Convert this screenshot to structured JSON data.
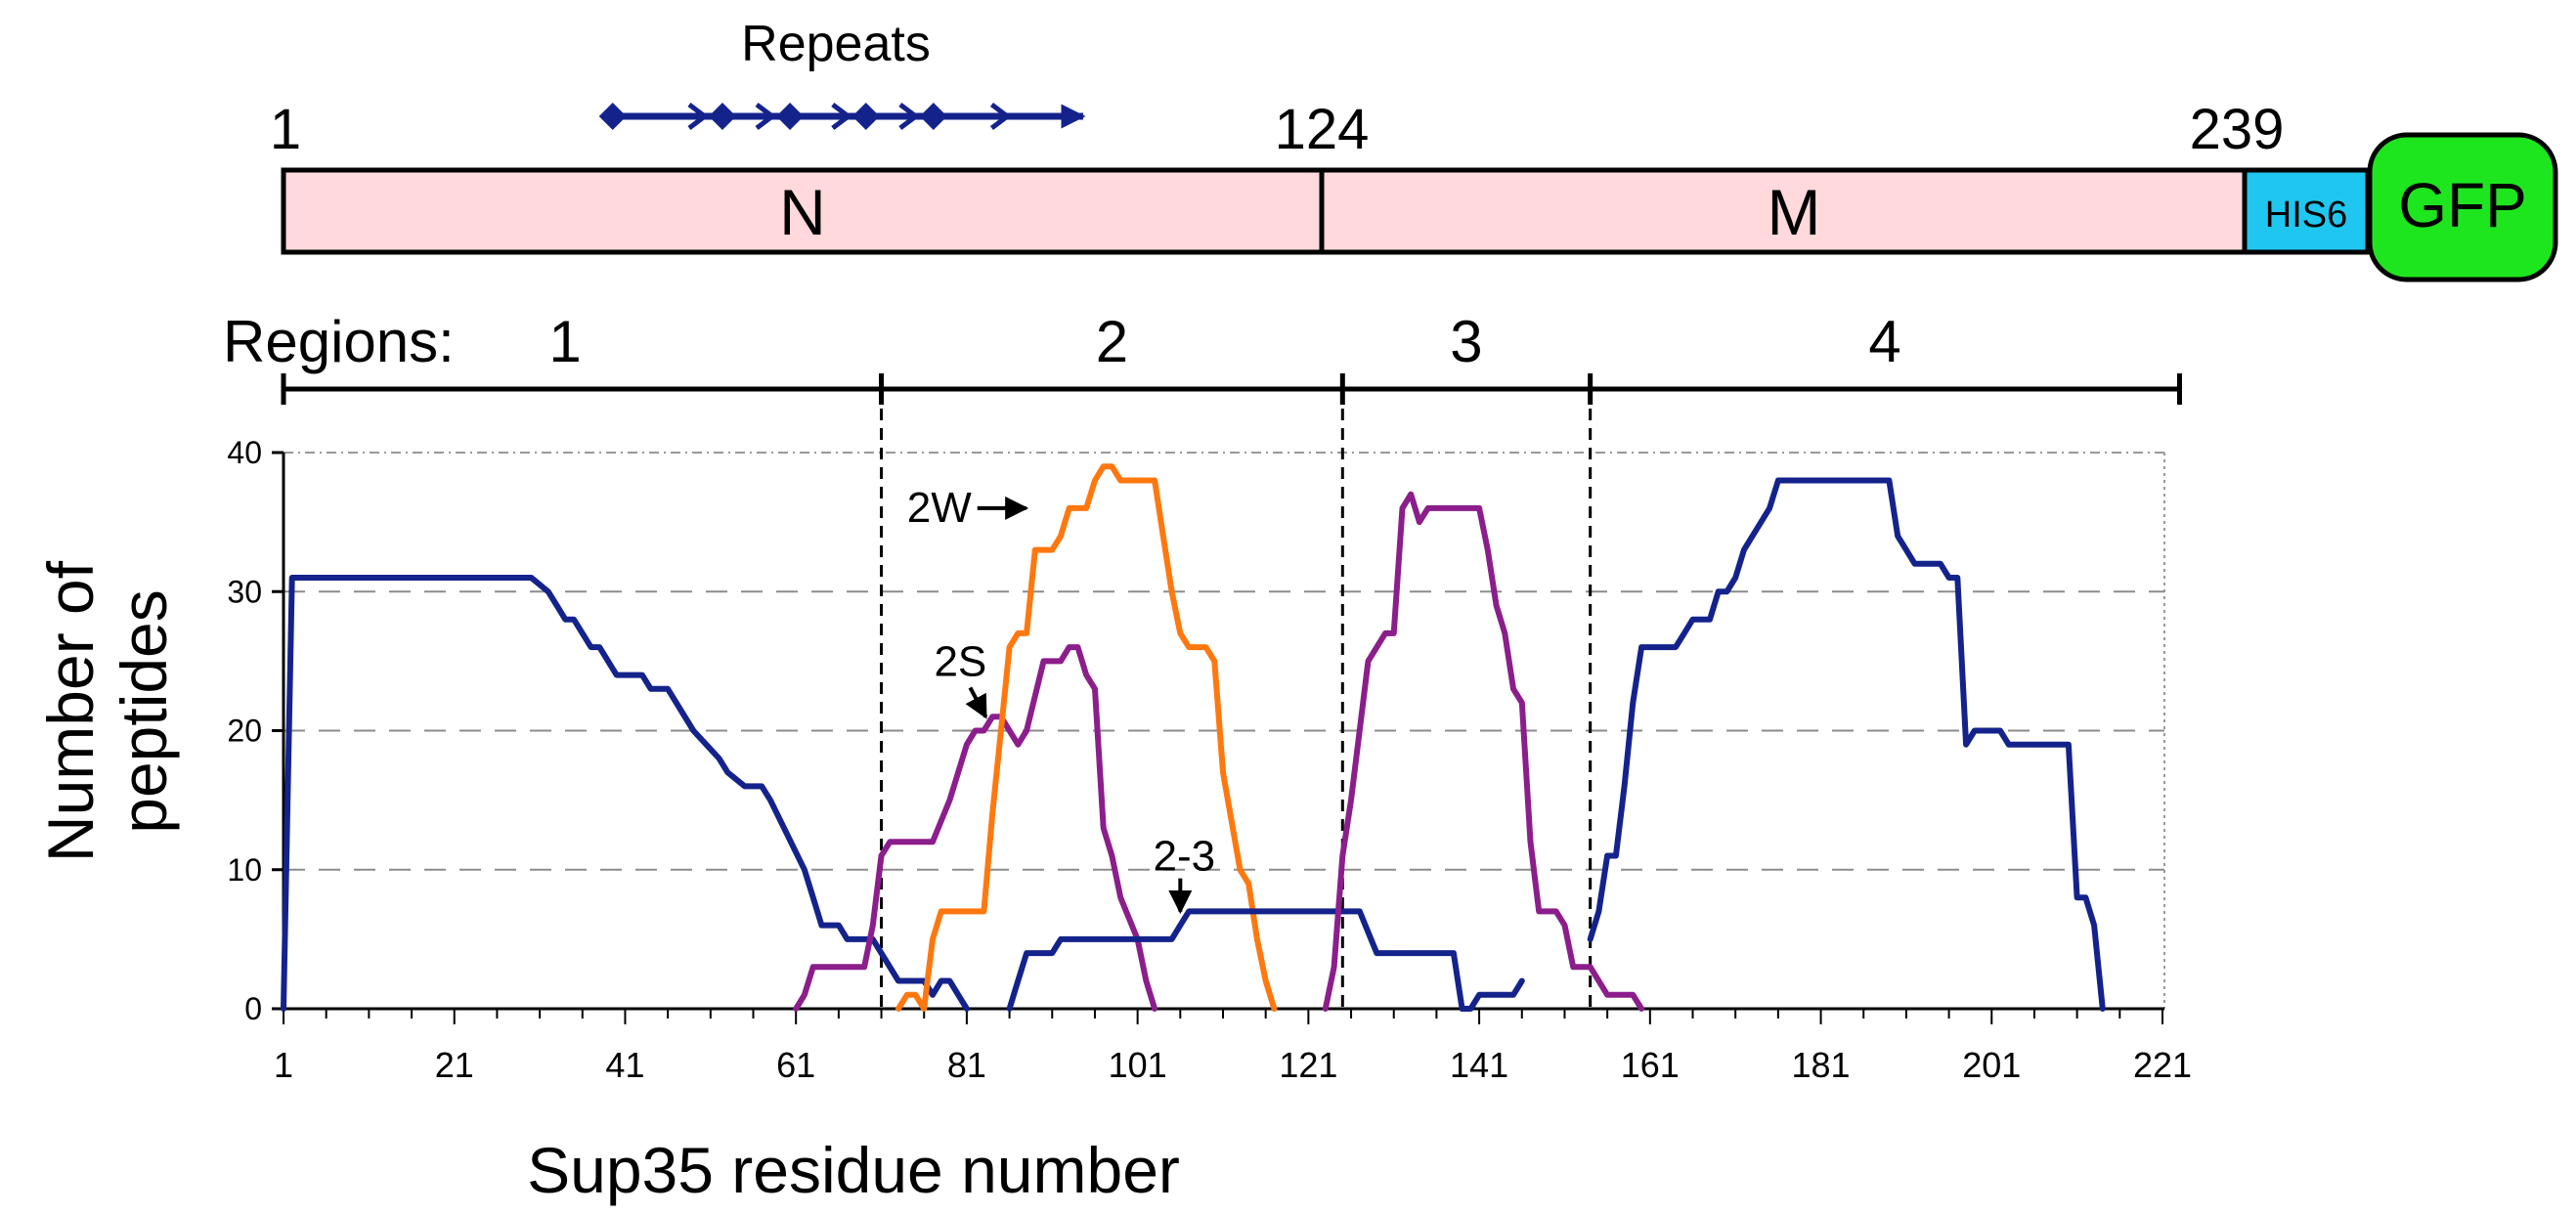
{
  "domain_bar": {
    "repeats_label": "Repeats",
    "label_start": "1",
    "label_boundary": "124",
    "label_end": "239",
    "segments": [
      {
        "key": "N",
        "label": "N",
        "start": 1,
        "end": 124,
        "color": "#ffd9dc"
      },
      {
        "key": "M",
        "label": "M",
        "start": 124,
        "end": 239,
        "color": "#ffd9dc"
      }
    ],
    "his_tag": {
      "label": "HIS6",
      "color": "#1fc7f0"
    },
    "gfp": {
      "label": "GFP",
      "color": "#1ee61e"
    },
    "repeat_positions": [
      40,
      53,
      61,
      70,
      78,
      90
    ],
    "repeat_arrow_color": "#14238c"
  },
  "regions": {
    "title": "Regions:",
    "items": [
      {
        "label": "1",
        "start": 1,
        "end": 71
      },
      {
        "label": "2",
        "start": 71,
        "end": 125
      },
      {
        "label": "3",
        "start": 125,
        "end": 154
      },
      {
        "label": "4",
        "start": 154,
        "end": 223
      }
    ]
  },
  "chart_data": {
    "type": "line",
    "xlabel": "Sup35 residue number",
    "ylabel": "Number of peptides",
    "ylabel_lines": [
      "Number of",
      "peptides"
    ],
    "xlim": [
      1,
      225
    ],
    "ylim": [
      0,
      40
    ],
    "xticks": [
      1,
      21,
      41,
      61,
      81,
      101,
      121,
      141,
      161,
      181,
      201,
      221
    ],
    "yticks": [
      0,
      10,
      20,
      30,
      40
    ],
    "grid": "horizontal dashed",
    "region_dividers": [
      71,
      125,
      154,
      223
    ],
    "series": [
      {
        "name": "Region 1",
        "color": "#14238c",
        "points": [
          [
            1,
            0
          ],
          [
            2,
            31
          ],
          [
            4,
            31
          ],
          [
            30,
            31
          ],
          [
            32,
            30
          ],
          [
            33,
            29
          ],
          [
            34,
            28
          ],
          [
            35,
            28
          ],
          [
            37,
            26
          ],
          [
            38,
            26
          ],
          [
            40,
            24
          ],
          [
            43,
            24
          ],
          [
            44,
            23
          ],
          [
            46,
            23
          ],
          [
            49,
            20
          ],
          [
            52,
            18
          ],
          [
            53,
            17
          ],
          [
            55,
            16
          ],
          [
            57,
            16
          ],
          [
            58,
            15
          ],
          [
            62,
            10
          ],
          [
            63,
            8
          ],
          [
            64,
            6
          ],
          [
            66,
            6
          ],
          [
            67,
            5
          ],
          [
            70,
            5
          ],
          [
            73,
            2
          ],
          [
            76,
            2
          ],
          [
            77,
            1
          ],
          [
            78,
            2
          ],
          [
            79,
            2
          ],
          [
            80,
            1
          ],
          [
            81,
            0
          ]
        ]
      },
      {
        "name": "2S",
        "color": "#8c1e8c",
        "points": [
          [
            61,
            0
          ],
          [
            62,
            1
          ],
          [
            63,
            3
          ],
          [
            69,
            3
          ],
          [
            70,
            6
          ],
          [
            71,
            11
          ],
          [
            72,
            12
          ],
          [
            77,
            12
          ],
          [
            79,
            15
          ],
          [
            81,
            19
          ],
          [
            82,
            20
          ],
          [
            83,
            20
          ],
          [
            84,
            21
          ],
          [
            85,
            21
          ],
          [
            86,
            20
          ],
          [
            87,
            19
          ],
          [
            88,
            20
          ],
          [
            90,
            25
          ],
          [
            92,
            25
          ],
          [
            93,
            26
          ],
          [
            94,
            26
          ],
          [
            95,
            24
          ],
          [
            96,
            23
          ],
          [
            97,
            13
          ],
          [
            98,
            11
          ],
          [
            99,
            8
          ],
          [
            101,
            5
          ],
          [
            102,
            2
          ],
          [
            103,
            0
          ]
        ]
      },
      {
        "name": "2W",
        "color": "#ff780f",
        "points": [
          [
            73,
            0
          ],
          [
            74,
            1
          ],
          [
            75,
            1
          ],
          [
            76,
            0
          ],
          [
            77,
            5
          ],
          [
            78,
            7
          ],
          [
            83,
            7
          ],
          [
            84,
            14
          ],
          [
            85,
            20
          ],
          [
            86,
            26
          ],
          [
            87,
            27
          ],
          [
            88,
            27
          ],
          [
            89,
            33
          ],
          [
            91,
            33
          ],
          [
            92,
            34
          ],
          [
            93,
            36
          ],
          [
            95,
            36
          ],
          [
            96,
            38
          ],
          [
            97,
            39
          ],
          [
            98,
            39
          ],
          [
            99,
            38
          ],
          [
            103,
            38
          ],
          [
            104,
            34
          ],
          [
            105,
            30
          ],
          [
            106,
            27
          ],
          [
            107,
            26
          ],
          [
            109,
            26
          ],
          [
            110,
            25
          ],
          [
            111,
            17
          ],
          [
            113,
            10
          ],
          [
            114,
            9
          ],
          [
            115,
            5
          ],
          [
            116,
            2
          ],
          [
            117,
            0
          ]
        ]
      },
      {
        "name": "2-3",
        "color": "#14238c",
        "points": [
          [
            86,
            0
          ],
          [
            87,
            2
          ],
          [
            88,
            4
          ],
          [
            91,
            4
          ],
          [
            92,
            5
          ],
          [
            105,
            5
          ],
          [
            106,
            6
          ],
          [
            107,
            7
          ],
          [
            120,
            7
          ],
          [
            123,
            7
          ],
          [
            127,
            7
          ],
          [
            129,
            4
          ],
          [
            134,
            4
          ],
          [
            138,
            4
          ],
          [
            139,
            0
          ],
          [
            140,
            0
          ],
          [
            141,
            1
          ],
          [
            145,
            1
          ],
          [
            146,
            2
          ]
        ]
      },
      {
        "name": "Region 3",
        "color": "#8c1e8c",
        "points": [
          [
            123,
            0
          ],
          [
            124,
            3
          ],
          [
            125,
            11
          ],
          [
            126,
            15
          ],
          [
            128,
            25
          ],
          [
            130,
            27
          ],
          [
            131,
            27
          ],
          [
            132,
            36
          ],
          [
            133,
            37
          ],
          [
            134,
            35
          ],
          [
            135,
            36
          ],
          [
            141,
            36
          ],
          [
            142,
            33
          ],
          [
            143,
            29
          ],
          [
            144,
            27
          ],
          [
            145,
            23
          ],
          [
            146,
            22
          ],
          [
            147,
            12
          ],
          [
            148,
            7
          ],
          [
            150,
            7
          ],
          [
            151,
            6
          ],
          [
            152,
            3
          ],
          [
            154,
            3
          ],
          [
            156,
            1
          ],
          [
            159,
            1
          ],
          [
            160,
            0
          ]
        ]
      },
      {
        "name": "Region 4",
        "color": "#14238c",
        "points": [
          [
            154,
            5
          ],
          [
            155,
            7
          ],
          [
            156,
            11
          ],
          [
            157,
            11
          ],
          [
            158,
            16
          ],
          [
            159,
            22
          ],
          [
            160,
            26
          ],
          [
            164,
            26
          ],
          [
            165,
            27
          ],
          [
            166,
            28
          ],
          [
            168,
            28
          ],
          [
            169,
            30
          ],
          [
            170,
            30
          ],
          [
            171,
            31
          ],
          [
            172,
            33
          ],
          [
            175,
            36
          ],
          [
            176,
            38
          ],
          [
            189,
            38
          ],
          [
            190,
            34
          ],
          [
            191,
            33
          ],
          [
            192,
            32
          ],
          [
            195,
            32
          ],
          [
            196,
            31
          ],
          [
            197,
            31
          ],
          [
            198,
            19
          ],
          [
            199,
            20
          ],
          [
            202,
            20
          ],
          [
            203,
            19
          ],
          [
            210,
            19
          ],
          [
            211,
            8
          ],
          [
            212,
            8
          ],
          [
            213,
            6
          ],
          [
            214,
            0
          ]
        ]
      }
    ],
    "annotations": [
      {
        "label": "2W",
        "arrow": "right",
        "target": [
          93,
          36
        ]
      },
      {
        "label": "2S",
        "arrow": "down",
        "target": [
          83,
          20
        ]
      },
      {
        "label": "2-3",
        "arrow": "down",
        "target": [
          106,
          6
        ]
      }
    ]
  }
}
